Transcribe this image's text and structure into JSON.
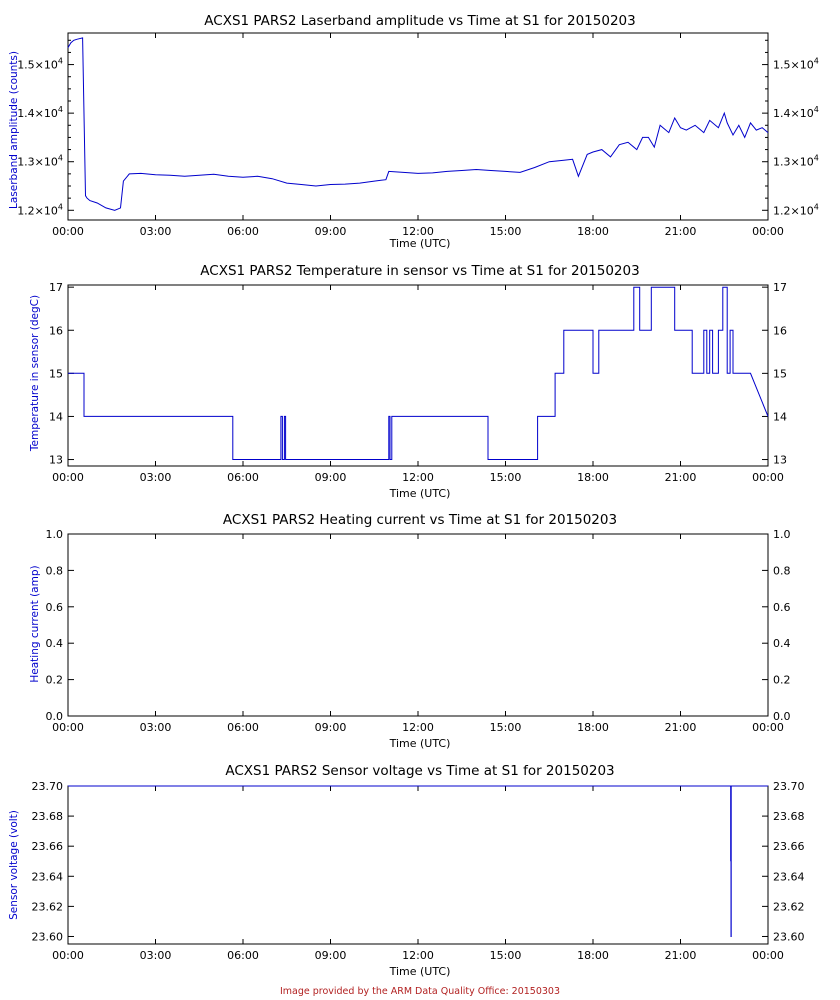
{
  "footer": "Image provided by the ARM Data Quality Office: 20150303",
  "colors": {
    "series": "#0000cc",
    "axis": "#000000",
    "footer": "#b22222"
  },
  "chart_data": [
    {
      "type": "line",
      "title": "ACXS1 PARS2 Laserband amplitude vs Time at S1 for 20150203",
      "xlabel": "Time (UTC)",
      "ylabel": "Laserband amplitude (counts)",
      "xticks": [
        "00:00",
        "03:00",
        "06:00",
        "09:00",
        "12:00",
        "15:00",
        "18:00",
        "21:00",
        "00:00"
      ],
      "xlim": [
        0,
        24
      ],
      "ylim": [
        11800,
        15650
      ],
      "yticks": [
        {
          "v": 12000,
          "m": "1.2",
          "e": "4"
        },
        {
          "v": 13000,
          "m": "1.3",
          "e": "4"
        },
        {
          "v": 14000,
          "m": "1.4",
          "e": "4"
        },
        {
          "v": 15000,
          "m": "1.5",
          "e": "4"
        }
      ],
      "series": [
        {
          "x": [
            0,
            0.1,
            0.2,
            0.3,
            0.5,
            0.6,
            0.65,
            0.75,
            1.0,
            1.3,
            1.6,
            1.8,
            1.9,
            2.1,
            2.5,
            3.0,
            3.5,
            4.0,
            4.5,
            5.0,
            5.5,
            6.0,
            6.5,
            7.0,
            7.5,
            8.0,
            8.5,
            9.0,
            9.5,
            10.0,
            10.5,
            10.9,
            11.0,
            11.5,
            12.0,
            12.5,
            13.0,
            13.5,
            14.0,
            14.5,
            15.0,
            15.5,
            16.0,
            16.5,
            17.0,
            17.3,
            17.5,
            17.8,
            18.0,
            18.3,
            18.6,
            18.9,
            19.2,
            19.5,
            19.7,
            19.9,
            20.1,
            20.3,
            20.6,
            20.8,
            21.0,
            21.2,
            21.5,
            21.8,
            22.0,
            22.3,
            22.5,
            22.6,
            22.8,
            23.0,
            23.2,
            23.4,
            23.6,
            23.8,
            24.0
          ],
          "y": [
            15350,
            15450,
            15500,
            15520,
            15550,
            12300,
            12250,
            12200,
            12150,
            12050,
            12000,
            12050,
            12600,
            12750,
            12760,
            12730,
            12720,
            12700,
            12720,
            12740,
            12700,
            12680,
            12700,
            12650,
            12560,
            12530,
            12500,
            12530,
            12540,
            12560,
            12600,
            12630,
            12800,
            12780,
            12760,
            12770,
            12800,
            12820,
            12840,
            12820,
            12800,
            12780,
            12880,
            13000,
            13030,
            13050,
            12700,
            13150,
            13200,
            13250,
            13100,
            13350,
            13400,
            13250,
            13500,
            13500,
            13300,
            13750,
            13600,
            13900,
            13700,
            13650,
            13750,
            13600,
            13850,
            13700,
            14000,
            13800,
            13550,
            13750,
            13500,
            13800,
            13650,
            13700,
            13600
          ]
        }
      ]
    },
    {
      "type": "line",
      "title": "ACXS1 PARS2 Temperature in sensor vs Time at S1 for 20150203",
      "xlabel": "Time (UTC)",
      "ylabel": "Temperature in sensor (degC)",
      "xticks": [
        "00:00",
        "03:00",
        "06:00",
        "09:00",
        "12:00",
        "15:00",
        "18:00",
        "21:00",
        "00:00"
      ],
      "xlim": [
        0,
        24
      ],
      "ylim": [
        12.85,
        17.05
      ],
      "yticks": [
        {
          "v": 13,
          "t": "13"
        },
        {
          "v": 14,
          "t": "14"
        },
        {
          "v": 15,
          "t": "15"
        },
        {
          "v": 16,
          "t": "16"
        },
        {
          "v": 17,
          "t": "17"
        }
      ],
      "series": [
        {
          "x": [
            0,
            0.55,
            0.55,
            5.65,
            5.65,
            7.3,
            7.3,
            7.35,
            7.35,
            7.42,
            7.42,
            7.46,
            7.46,
            11.0,
            11.0,
            11.04,
            11.04,
            11.1,
            11.1,
            14.4,
            14.4,
            16.1,
            16.1,
            16.7,
            16.7,
            17.0,
            17.0,
            18.0,
            18.0,
            18.2,
            18.2,
            19.4,
            19.4,
            19.6,
            19.6,
            20.0,
            20.0,
            20.8,
            20.8,
            21.4,
            21.4,
            21.8,
            21.8,
            21.9,
            21.9,
            22.0,
            22.0,
            22.1,
            22.1,
            22.3,
            22.3,
            22.45,
            22.45,
            22.6,
            22.6,
            22.7,
            22.7,
            22.8,
            22.8,
            23.0,
            23.0,
            23.4,
            23.4,
            24.0
          ],
          "y": [
            15,
            15,
            14,
            14,
            13,
            13,
            14,
            14,
            13,
            13,
            14,
            14,
            13,
            13,
            14,
            14,
            13,
            13,
            14,
            14,
            13,
            13,
            14,
            14,
            15,
            15,
            16,
            16,
            15,
            15,
            16,
            16,
            17,
            17,
            16,
            16,
            17,
            17,
            16,
            16,
            15,
            15,
            16,
            16,
            15,
            15,
            16,
            16,
            15,
            15,
            16,
            16,
            17,
            17,
            15,
            15,
            16,
            16,
            15,
            15,
            15,
            15,
            15,
            14
          ]
        }
      ]
    },
    {
      "type": "line",
      "title": "ACXS1 PARS2 Heating current vs Time at S1 for 20150203",
      "xlabel": "Time (UTC)",
      "ylabel": "Heating current (amp)",
      "xticks": [
        "00:00",
        "03:00",
        "06:00",
        "09:00",
        "12:00",
        "15:00",
        "18:00",
        "21:00",
        "00:00"
      ],
      "xlim": [
        0,
        24
      ],
      "ylim": [
        0,
        1
      ],
      "yticks": [
        {
          "v": 0,
          "t": "0.0"
        },
        {
          "v": 0.2,
          "t": "0.2"
        },
        {
          "v": 0.4,
          "t": "0.4"
        },
        {
          "v": 0.6,
          "t": "0.6"
        },
        {
          "v": 0.8,
          "t": "0.8"
        },
        {
          "v": 1.0,
          "t": "1.0"
        }
      ],
      "series": []
    },
    {
      "type": "line",
      "title": "ACXS1 PARS2 Sensor voltage vs Time at S1 for 20150203",
      "xlabel": "Time (UTC)",
      "ylabel": "Sensor voltage (volt)",
      "xticks": [
        "00:00",
        "03:00",
        "06:00",
        "09:00",
        "12:00",
        "15:00",
        "18:00",
        "21:00",
        "00:00"
      ],
      "xlim": [
        0,
        24
      ],
      "ylim": [
        23.595,
        23.7
      ],
      "yticks": [
        {
          "v": 23.6,
          "t": "23.60"
        },
        {
          "v": 23.62,
          "t": "23.62"
        },
        {
          "v": 23.64,
          "t": "23.64"
        },
        {
          "v": 23.66,
          "t": "23.66"
        },
        {
          "v": 23.68,
          "t": "23.68"
        },
        {
          "v": 23.7,
          "t": "23.70"
        }
      ],
      "series": [
        {
          "x": [
            0,
            22.72,
            22.72,
            22.73,
            22.73,
            22.74,
            22.74,
            22.75,
            22.75,
            24.0
          ],
          "y": [
            23.7,
            23.7,
            23.65,
            23.7,
            23.6,
            23.6,
            23.7,
            23.7,
            23.7,
            23.7
          ]
        }
      ]
    }
  ]
}
